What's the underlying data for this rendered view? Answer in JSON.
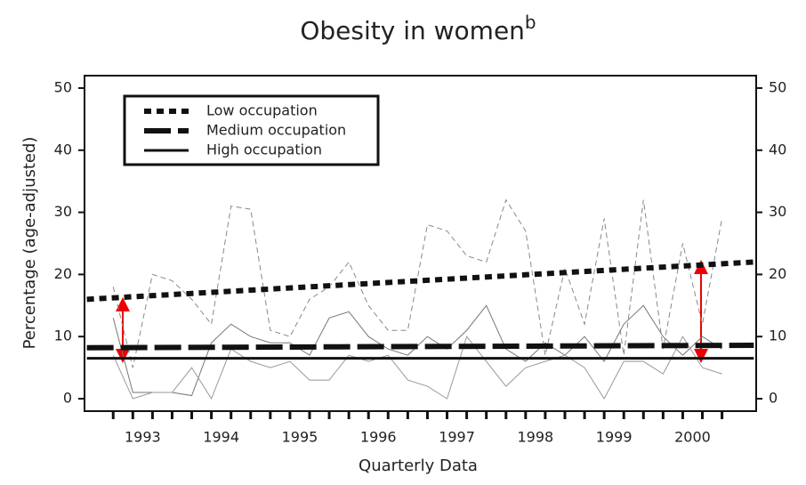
{
  "chart_data": {
    "type": "line",
    "title": "Obesity in women",
    "title_superscript": "b",
    "y_label": "Percentage  (age-adjusted)",
    "x_label": "Quarterly Data",
    "x": [
      1993.125,
      1993.375,
      1993.625,
      1993.875,
      1994.125,
      1994.375,
      1994.625,
      1994.875,
      1995.125,
      1995.375,
      1995.625,
      1995.875,
      1996.125,
      1996.375,
      1996.625,
      1996.875,
      1997.125,
      1997.375,
      1997.625,
      1997.875,
      1998.125,
      1998.375,
      1998.625,
      1998.875,
      1999.125,
      1999.375,
      1999.625,
      1999.875,
      2000.125,
      2000.375,
      2000.625,
      2000.875
    ],
    "xlim": [
      1992.76,
      2001.31
    ],
    "xticks": [
      {
        "value": 1993.5,
        "label": "1993"
      },
      {
        "value": 1994.5,
        "label": "1994"
      },
      {
        "value": 1995.5,
        "label": "1995"
      },
      {
        "value": 1996.5,
        "label": "1996"
      },
      {
        "value": 1997.5,
        "label": "1997"
      },
      {
        "value": 1998.5,
        "label": "1998"
      },
      {
        "value": 1999.5,
        "label": "1999"
      },
      {
        "value": 2000.5,
        "label": "2000"
      }
    ],
    "ylim": [
      -2,
      52
    ],
    "yticks": [
      0,
      10,
      20,
      30,
      40,
      50
    ],
    "y2lim": [
      -2,
      52
    ],
    "y2ticks": [
      0,
      10,
      20,
      30,
      40,
      50
    ],
    "trend_x": [
      1992.79,
      2001.28
    ],
    "series": [
      {
        "name": "Low occupation",
        "color": "#888888",
        "values": [
          18,
          5,
          20,
          19,
          16,
          12,
          31,
          30.5,
          11,
          10,
          16,
          18,
          22,
          15,
          11,
          11,
          28,
          27,
          23,
          22,
          32,
          27,
          7,
          21,
          12,
          29,
          7,
          32,
          8,
          25,
          12,
          29
        ],
        "trend": [
          16,
          22
        ]
      },
      {
        "name": "Medium occupation",
        "color": "#777777",
        "values": [
          13,
          1,
          1,
          1,
          0.5,
          9,
          12,
          10,
          9,
          9,
          7,
          13,
          14,
          10,
          8,
          7,
          10,
          8,
          11,
          15,
          8,
          6,
          9,
          7,
          10,
          6,
          12,
          15,
          10,
          7,
          10,
          8
        ],
        "trend": [
          8.2,
          8.6
        ]
      },
      {
        "name": "High occupation",
        "color": "#999999",
        "values": [
          7,
          0,
          1,
          1,
          5,
          0,
          8,
          6,
          5,
          6,
          3,
          3,
          7,
          6,
          7,
          3,
          2,
          0,
          10,
          6,
          2,
          5,
          6,
          7,
          5,
          0,
          6,
          6,
          4,
          10,
          5,
          4
        ],
        "trend": [
          6.5,
          6.5
        ]
      }
    ]
  }
}
